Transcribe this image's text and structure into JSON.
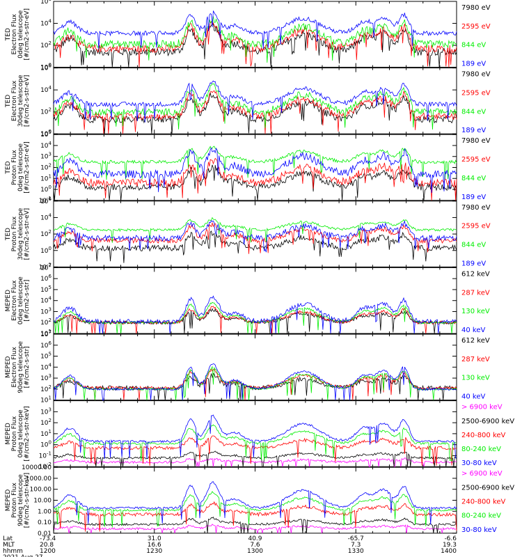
{
  "colors": {
    "black": "#000000",
    "red": "#ff0000",
    "green": "#00ee00",
    "blue": "#0000ff",
    "magenta": "#ff00ff"
  },
  "footer": {
    "row_labels": [
      "Lat",
      "MLT",
      "hhmm"
    ],
    "date": "2021 Aug 27",
    "ticks": [
      {
        "lat": "-73.4",
        "mlt": "20.8",
        "hhmm": "1200"
      },
      {
        "lat": "31.0",
        "mlt": "16.6",
        "hhmm": "1230"
      },
      {
        "lat": "40.9",
        "mlt": "7.6",
        "hhmm": "1300"
      },
      {
        "lat": "-65.7",
        "mlt": "7.3",
        "hhmm": "1330"
      },
      {
        "lat": "-6.6",
        "mlt": "19.3",
        "hhmm": "1400"
      }
    ]
  },
  "chart_data": [
    {
      "type": "line",
      "instrument": "TED",
      "ylabel": [
        "TED",
        "Electron Flux",
        "0deg telescope",
        "[#/cm2-s-str-eV]"
      ],
      "y_log": true,
      "ylim": [
        1,
        1000000
      ],
      "ytick_labels": [
        {
          "v": 1,
          "t": "10^0"
        },
        {
          "v": 100,
          "t": "10^2"
        },
        {
          "v": 10000,
          "t": "10^4"
        },
        {
          "v": 1000000,
          "t": "10^6"
        }
      ],
      "legend": [
        "7980 eV",
        "2595 eV",
        "844 eV",
        "189 eV"
      ],
      "series_colors": [
        "black",
        "red",
        "green",
        "blue"
      ],
      "base": [
        1.4,
        1.7,
        2.1,
        3.1
      ],
      "noise": [
        0.35,
        0.35,
        0.35,
        0.2
      ],
      "scale": [
        1.0,
        1.0,
        1.0,
        0.85
      ]
    },
    {
      "type": "line",
      "instrument": "TED",
      "ylabel": [
        "TED",
        "Electron Flux",
        "30deg telescope",
        "[#/cm2-s-str-eV]"
      ],
      "y_log": true,
      "ylim": [
        1,
        1000000
      ],
      "ytick_labels": [
        {
          "v": 1,
          "t": "10^0"
        },
        {
          "v": 100,
          "t": "10^2"
        },
        {
          "v": 10000,
          "t": "10^4"
        },
        {
          "v": 1000000,
          "t": "10^6"
        }
      ],
      "legend": [
        "7980 eV",
        "2595 eV",
        "844 eV",
        "189 eV"
      ],
      "series_colors": [
        "black",
        "red",
        "green",
        "blue"
      ],
      "base": [
        1.3,
        1.6,
        2.0,
        2.7
      ],
      "noise": [
        0.3,
        0.3,
        0.3,
        0.2
      ],
      "scale": [
        1.0,
        1.0,
        1.0,
        0.9
      ]
    },
    {
      "type": "line",
      "instrument": "TED",
      "ylabel": [
        "TED",
        "Proton Flux",
        "0deg telescope",
        "[#/cm2-s-str-eV]"
      ],
      "y_log": true,
      "ylim": [
        0.1,
        100000
      ],
      "ytick_labels": [
        {
          "v": 0.1,
          "t": "10^-1"
        },
        {
          "v": 1,
          "t": "10^0"
        },
        {
          "v": 10,
          "t": "10^1"
        },
        {
          "v": 100,
          "t": "10^2"
        },
        {
          "v": 1000,
          "t": "10^3"
        },
        {
          "v": 10000,
          "t": "10^4"
        },
        {
          "v": 100000,
          "t": "10^5"
        }
      ],
      "legend": [
        "7980 eV",
        "2595 eV",
        "844 eV",
        "189 eV"
      ],
      "series_colors": [
        "black",
        "red",
        "green",
        "blue"
      ],
      "base": [
        0.2,
        0.6,
        2.5,
        1.4
      ],
      "noise": [
        0.3,
        0.35,
        0.15,
        0.35
      ],
      "scale": [
        0.8,
        0.9,
        0.6,
        1.0
      ]
    },
    {
      "type": "line",
      "instrument": "TED",
      "ylabel": [
        "TED",
        "Proton Flux",
        "30deg telescope",
        "[#/cm2-s-str-eV]"
      ],
      "y_log": true,
      "ylim": [
        0.01,
        1000000
      ],
      "ytick_labels": [
        {
          "v": 0.01,
          "t": "10^-2"
        },
        {
          "v": 1,
          "t": "10^0"
        },
        {
          "v": 100,
          "t": "10^2"
        },
        {
          "v": 10000,
          "t": "10^4"
        },
        {
          "v": 1000000,
          "t": "10^6"
        }
      ],
      "legend": [
        "7980 eV",
        "2595 eV",
        "844 eV",
        "189 eV"
      ],
      "series_colors": [
        "black",
        "red",
        "green",
        "blue"
      ],
      "base": [
        0.3,
        1.2,
        2.5,
        1.5
      ],
      "noise": [
        0.35,
        0.3,
        0.15,
        0.35
      ],
      "scale": [
        0.8,
        0.85,
        0.6,
        0.9
      ]
    },
    {
      "type": "line",
      "instrument": "MEPED",
      "ylabel": [
        "MEPED",
        "Electron Flux",
        "0deg telescope",
        "[#/cm2-s-str]"
      ],
      "y_log": true,
      "ylim": [
        10,
        10000000
      ],
      "ytick_labels": [
        {
          "v": 10,
          "t": "10^1"
        },
        {
          "v": 100,
          "t": "10^2"
        },
        {
          "v": 1000,
          "t": "10^3"
        },
        {
          "v": 10000,
          "t": "10^4"
        },
        {
          "v": 100000,
          "t": "10^5"
        },
        {
          "v": 1000000,
          "t": "10^6"
        },
        {
          "v": 10000000,
          "t": "10^7"
        }
      ],
      "legend": [
        "612 keV",
        "287 keV",
        "130 keV",
        "40 keV"
      ],
      "series_colors": [
        "black",
        "red",
        "green",
        "blue"
      ],
      "base": [
        2.0,
        2.0,
        2.0,
        2.1
      ],
      "noise": [
        0.15,
        0.15,
        0.1,
        0.2
      ],
      "scale": [
        0.5,
        0.6,
        0.8,
        1.0
      ]
    },
    {
      "type": "line",
      "instrument": "MEPED",
      "ylabel": [
        "MEPED",
        "Electron Flux",
        "90deg telescope",
        "[#/cm2-s-str]"
      ],
      "y_log": true,
      "ylim": [
        10,
        10000000
      ],
      "ytick_labels": [
        {
          "v": 10,
          "t": "10^1"
        },
        {
          "v": 100,
          "t": "10^2"
        },
        {
          "v": 1000,
          "t": "10^3"
        },
        {
          "v": 10000,
          "t": "10^4"
        },
        {
          "v": 100000,
          "t": "10^5"
        },
        {
          "v": 1000000,
          "t": "10^6"
        },
        {
          "v": 10000000,
          "t": "10^7"
        }
      ],
      "legend": [
        "612 keV",
        "287 keV",
        "130 keV",
        "40 keV"
      ],
      "series_colors": [
        "black",
        "red",
        "green",
        "blue"
      ],
      "base": [
        2.1,
        2.1,
        2.0,
        2.0
      ],
      "noise": [
        0.2,
        0.15,
        0.1,
        0.1
      ],
      "scale": [
        0.5,
        0.7,
        0.85,
        1.0
      ]
    },
    {
      "type": "line",
      "instrument": "MEPED",
      "ylabel": [
        "MEPED",
        "Proton Flux",
        "0deg telescope",
        "[#/cm2-s-str-keV]"
      ],
      "y_log": true,
      "ylim": [
        0.01,
        10000
      ],
      "ytick_labels": [
        {
          "v": 0.01,
          "t": "10^-2"
        },
        {
          "v": 0.1,
          "t": "10^-1"
        },
        {
          "v": 1,
          "t": "10^0"
        },
        {
          "v": 10,
          "t": "10^1"
        },
        {
          "v": 100,
          "t": "10^2"
        },
        {
          "v": 1000,
          "t": "10^3"
        }
      ],
      "legend": [
        "> 6900 keV",
        "2500-6900 keV",
        "240-800 keV",
        "80-240 keV",
        "30-80 keV"
      ],
      "legend_colors": [
        "magenta",
        "black",
        "red",
        "green",
        "blue"
      ],
      "series_colors": [
        "magenta",
        "black",
        "red",
        "green",
        "blue"
      ],
      "base": [
        -1.6,
        -1.2,
        -0.3,
        0.1,
        0.3
      ],
      "noise": [
        0.1,
        0.1,
        0.15,
        0.1,
        0.1
      ],
      "scale": [
        0.15,
        0.25,
        0.45,
        0.7,
        1.0
      ]
    },
    {
      "type": "line",
      "instrument": "MEPED",
      "ylabel": [
        "MEPED",
        "Proton Flux",
        "90deg telescope",
        "[#/cm2-s-str-keV]"
      ],
      "y_log": true,
      "ylim": [
        0.01,
        10000
      ],
      "ytick_labels": [
        {
          "v": 0.01,
          "t": "0.01"
        },
        {
          "v": 0.1,
          "t": "0.10"
        },
        {
          "v": 1,
          "t": "1.00"
        },
        {
          "v": 10,
          "t": "10.00"
        },
        {
          "v": 100,
          "t": "100.00"
        },
        {
          "v": 1000,
          "t": "1000.00"
        },
        {
          "v": 10000,
          "t": "10000.00"
        }
      ],
      "legend": [
        "> 6900 keV",
        "2500-6900 keV",
        "240-800 keV",
        "80-240 keV",
        "30-80 keV"
      ],
      "legend_colors": [
        "magenta",
        "black",
        "red",
        "green",
        "blue"
      ],
      "series_colors": [
        "magenta",
        "black",
        "red",
        "green",
        "blue"
      ],
      "base": [
        -1.6,
        -1.2,
        -0.3,
        0.1,
        0.3
      ],
      "noise": [
        0.1,
        0.1,
        0.15,
        0.1,
        0.1
      ],
      "scale": [
        0.15,
        0.25,
        0.45,
        0.7,
        1.0
      ]
    }
  ]
}
